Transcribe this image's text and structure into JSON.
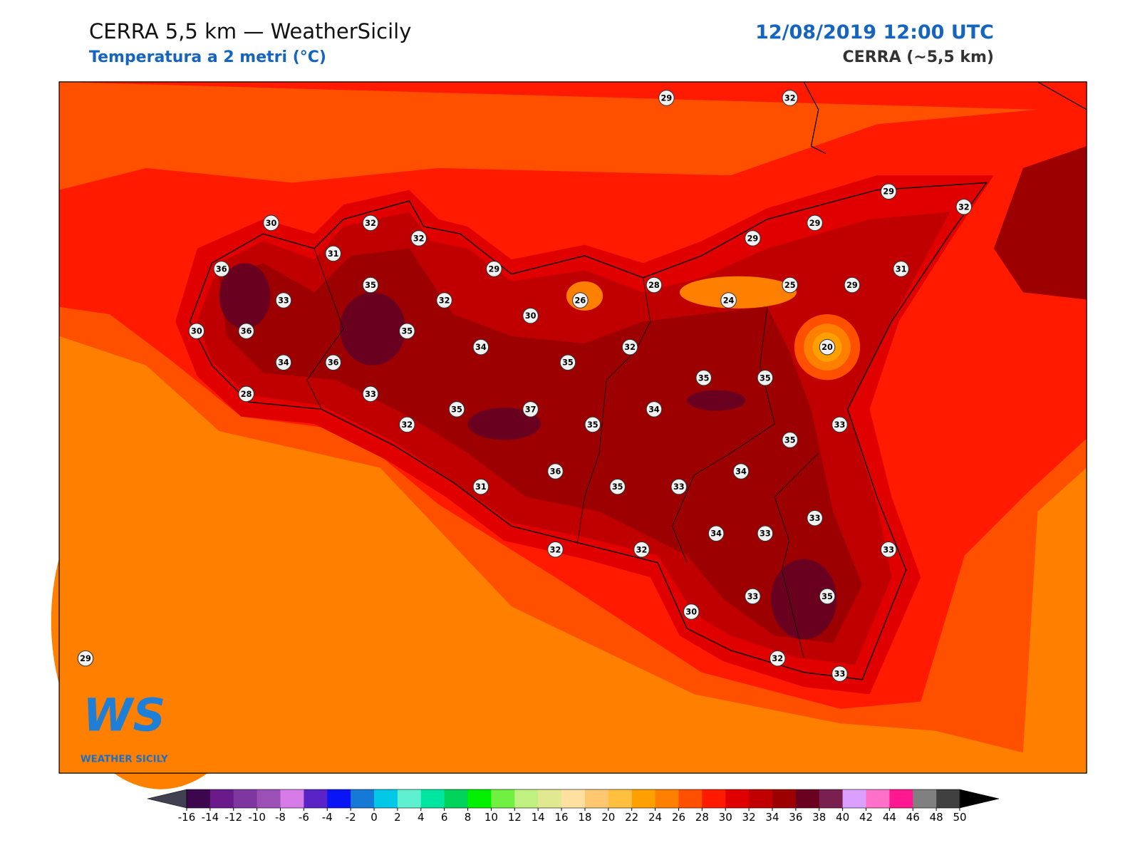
{
  "header": {
    "title": "CERRA 5,5 km — WeatherSicily",
    "subtitle": "Temperatura a 2 metri (°C)",
    "datetime": "12/08/2019 12:00 UTC",
    "source": "CERRA (~5,5 km)"
  },
  "stations": [
    29,
    32,
    29,
    32,
    30,
    32,
    32,
    29,
    29,
    31,
    36,
    29,
    31,
    35,
    28,
    25,
    29,
    33,
    32,
    26,
    24,
    30,
    30,
    36,
    35,
    34,
    32,
    20,
    34,
    36,
    35,
    35,
    35,
    28,
    33,
    35,
    37,
    34,
    32,
    35,
    33,
    35,
    36,
    34,
    31,
    35,
    33,
    33,
    34,
    33,
    32,
    32,
    33,
    33,
    35,
    30,
    29,
    32,
    33
  ],
  "logo": {
    "mark": "WS",
    "name": "WEATHER SICILY"
  },
  "colorbar": {
    "ticks": [
      -16,
      -14,
      -12,
      -10,
      -8,
      -6,
      -4,
      -2,
      0,
      2,
      4,
      6,
      8,
      10,
      12,
      14,
      16,
      18,
      20,
      22,
      24,
      26,
      28,
      30,
      32,
      34,
      36,
      38,
      40,
      42,
      44,
      46,
      48,
      50
    ],
    "colors": [
      "#3d0750",
      "#6a1a8a",
      "#7e36a0",
      "#9b50b8",
      "#d77be8",
      "#5a23c8",
      "#0a14f5",
      "#1779d6",
      "#00c8e6",
      "#5ff0d0",
      "#00e6a0",
      "#00d25a",
      "#00f000",
      "#70f040",
      "#c0f080",
      "#e0e890",
      "#ffe0a0",
      "#ffc870",
      "#ffc040",
      "#ffa000",
      "#ff8000",
      "#ff5000",
      "#ff1a00",
      "#e00000",
      "#c00000",
      "#9c0000",
      "#6a0020",
      "#7a2050",
      "#d9a0ff",
      "#ff70c8",
      "#ff1890",
      "#808080",
      "#404040"
    ],
    "under_color": "#404050",
    "over_color": "#000000"
  }
}
